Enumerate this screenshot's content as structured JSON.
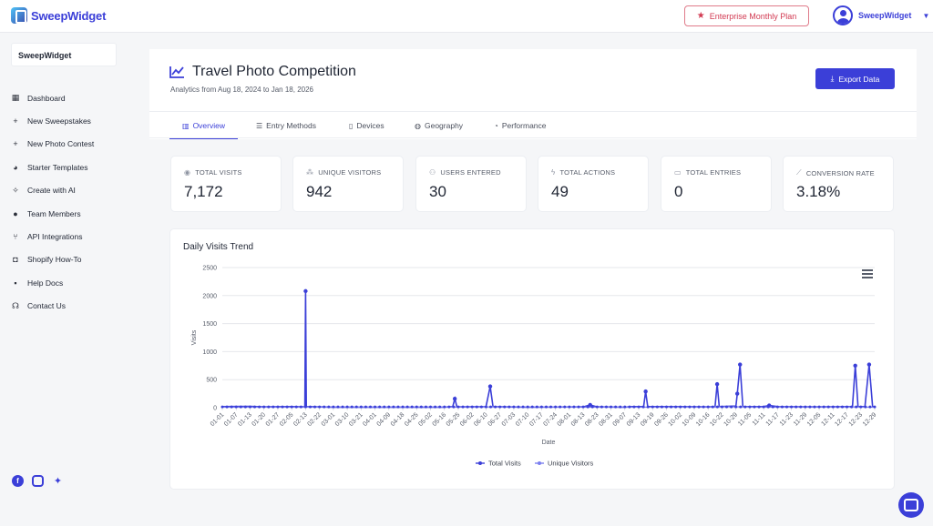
{
  "app": {
    "logo_text": "SweepWidget"
  },
  "topbar": {
    "plan_label": "Enterprise Monthly Plan",
    "user_name": "SweepWidget"
  },
  "sidebar": {
    "workspace": "SweepWidget",
    "items": [
      {
        "label": "Dashboard",
        "icon": "grid-icon"
      },
      {
        "label": "New Sweepstakes",
        "icon": "plus-icon"
      },
      {
        "label": "New Photo Contest",
        "icon": "plus-icon"
      },
      {
        "label": "Starter Templates",
        "icon": "palette-icon"
      },
      {
        "label": "Create with AI",
        "icon": "magic-wand-icon"
      },
      {
        "label": "Team Members",
        "icon": "users-icon"
      },
      {
        "label": "API Integrations",
        "icon": "branch-icon"
      },
      {
        "label": "Shopify How-To",
        "icon": "shopping-bag-icon"
      },
      {
        "label": "Help Docs",
        "icon": "info-icon"
      },
      {
        "label": "Contact Us",
        "icon": "headset-icon"
      }
    ]
  },
  "header": {
    "title": "Travel Photo Competition",
    "subtitle": "Analytics from Aug 18, 2024 to Jan 18, 2026",
    "export_label": "Export Data"
  },
  "tabs": [
    {
      "label": "Overview",
      "icon": "chart-icon"
    },
    {
      "label": "Entry Methods",
      "icon": "list-icon"
    },
    {
      "label": "Devices",
      "icon": "mobile-icon"
    },
    {
      "label": "Geography",
      "icon": "globe-icon"
    },
    {
      "label": "Performance",
      "icon": "gauge-icon"
    }
  ],
  "stats": [
    {
      "label": "TOTAL VISITS",
      "value": "7,172",
      "icon": "eye-icon"
    },
    {
      "label": "UNIQUE VISITORS",
      "value": "942",
      "icon": "users-icon"
    },
    {
      "label": "USERS ENTERED",
      "value": "30",
      "icon": "user-check-icon"
    },
    {
      "label": "TOTAL ACTIONS",
      "value": "49",
      "icon": "bolt-icon"
    },
    {
      "label": "TOTAL ENTRIES",
      "value": "0",
      "icon": "ticket-icon"
    },
    {
      "label": "CONVERSION RATE",
      "value": "3.18%",
      "icon": "trend-icon"
    }
  ],
  "colors": {
    "accent": "#3b3fd8",
    "series_total": "#3b3fd8",
    "series_unique": "#7b7ff0"
  },
  "chart_card_title": "Daily Visits Trend",
  "chart_data": {
    "type": "line",
    "xlabel": "Date",
    "ylabel": "Visits",
    "ylim": [
      0,
      2500
    ],
    "yticks": [
      0,
      500,
      1000,
      1500,
      2000,
      2500
    ],
    "xtick_labels": [
      "01-01",
      "01-07",
      "01-13",
      "01-20",
      "01-27",
      "02-05",
      "02-13",
      "02-22",
      "03-01",
      "03-10",
      "03-21",
      "04-01",
      "04-09",
      "04-18",
      "04-25",
      "05-02",
      "05-16",
      "05-25",
      "06-02",
      "06-10",
      "06-27",
      "07-03",
      "07-10",
      "07-17",
      "07-24",
      "08-01",
      "08-13",
      "08-23",
      "08-31",
      "09-07",
      "09-13",
      "09-19",
      "09-26",
      "10-02",
      "10-09",
      "10-16",
      "10-22",
      "10-29",
      "11-05",
      "11-11",
      "11-17",
      "11-23",
      "11-29",
      "12-05",
      "12-11",
      "12-17",
      "12-23",
      "12-29"
    ],
    "grid": true,
    "legend": "bottom-center",
    "series": [
      {
        "name": "Total Visits",
        "points": [
          [
            0,
            20
          ],
          [
            2,
            25
          ],
          [
            3,
            15
          ],
          [
            5,
            20
          ],
          [
            5.95,
            15
          ],
          [
            6,
            2080
          ],
          [
            6.05,
            20
          ],
          [
            8,
            10
          ],
          [
            12,
            10
          ],
          [
            16,
            10
          ],
          [
            16.6,
            20
          ],
          [
            16.75,
            160
          ],
          [
            16.9,
            15
          ],
          [
            19,
            20
          ],
          [
            19.3,
            380
          ],
          [
            19.5,
            20
          ],
          [
            22,
            10
          ],
          [
            26,
            15
          ],
          [
            26.5,
            50
          ],
          [
            27,
            15
          ],
          [
            29,
            10
          ],
          [
            29.5,
            20
          ],
          [
            30.35,
            20
          ],
          [
            30.5,
            290
          ],
          [
            30.65,
            20
          ],
          [
            33,
            20
          ],
          [
            35,
            15
          ],
          [
            35.5,
            20
          ],
          [
            35.65,
            420
          ],
          [
            35.8,
            20
          ],
          [
            37,
            30
          ],
          [
            37.1,
            250
          ],
          [
            37.3,
            770
          ],
          [
            37.5,
            20
          ],
          [
            39,
            20
          ],
          [
            39.4,
            40
          ],
          [
            40,
            20
          ],
          [
            43,
            15
          ],
          [
            45,
            20
          ],
          [
            45.4,
            20
          ],
          [
            45.6,
            750
          ],
          [
            45.8,
            20
          ],
          [
            46.3,
            20
          ],
          [
            46.6,
            770
          ],
          [
            46.85,
            20
          ],
          [
            47,
            15
          ]
        ]
      },
      {
        "name": "Unique Visitors",
        "points": [
          [
            0,
            10
          ],
          [
            6,
            12
          ],
          [
            10,
            8
          ],
          [
            16.75,
            12
          ],
          [
            19.3,
            15
          ],
          [
            26.5,
            10
          ],
          [
            30.5,
            12
          ],
          [
            35.65,
            14
          ],
          [
            37.3,
            16
          ],
          [
            39.4,
            10
          ],
          [
            45.6,
            14
          ],
          [
            46.6,
            12
          ],
          [
            47,
            8
          ]
        ]
      }
    ]
  }
}
